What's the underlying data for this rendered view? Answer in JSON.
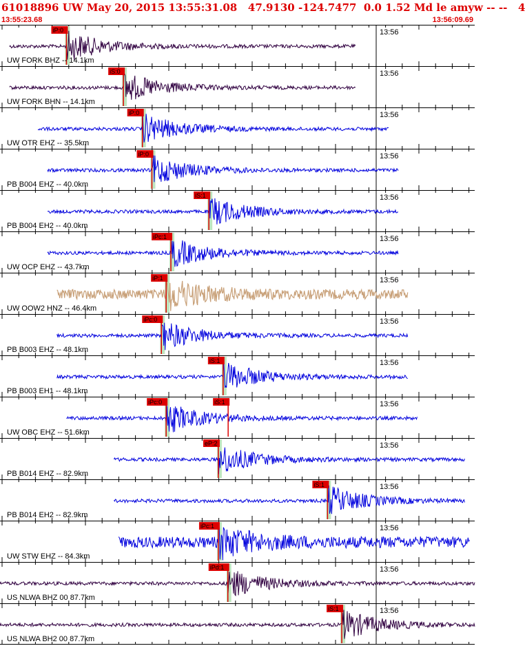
{
  "header": {
    "title": "61018896 UW May 20, 2015 13:55:31.08   47.9130 -124.7477  0.0 1.52 Md le amyw -- --   4",
    "start_time": "13:55:23.68",
    "end_time": "13:56:09.69"
  },
  "colors": {
    "title": "#dd0000",
    "pick": "#dd0000",
    "window": "#bfe6bf",
    "blue_trace": "#0000dd",
    "dark_trace": "#300040",
    "tan_trace": "#c8a078"
  },
  "chart_data": {
    "type": "line",
    "time_axis": {
      "start": "13:55:23.68",
      "end": "13:56:09.69",
      "minute_label": "13:56"
    },
    "traces": [
      {
        "label": "UW FORK BHZ -- 14.1km",
        "color": "dark",
        "picks": [
          {
            "text": "iP:0"
          }
        ],
        "start": 2,
        "end": 75,
        "onset": 14
      },
      {
        "label": "UW FORK BHN -- 14.1km",
        "color": "dark",
        "picks": [
          {
            "text": "iS:0"
          }
        ],
        "start": 2,
        "end": 75,
        "onset": 26
      },
      {
        "label": "UW OTR EHZ -- 35.5km",
        "color": "blue",
        "picks": [
          {
            "text": "iP:0"
          }
        ],
        "start": 8,
        "end": 82,
        "onset": 30
      },
      {
        "label": "PB B004 EHZ -- 40.0km",
        "color": "blue",
        "picks": [
          {
            "text": "iP:0"
          }
        ],
        "start": 10,
        "end": 84,
        "onset": 32
      },
      {
        "label": "PB B004 EH2 -- 40.0km",
        "color": "blue",
        "picks": [
          {
            "text": "iS:1"
          }
        ],
        "start": 10,
        "end": 84,
        "onset": 44
      },
      {
        "label": "UW OCP EHZ -- 43.7km",
        "color": "blue",
        "picks": [
          {
            "text": "iPc:1"
          }
        ],
        "start": 10,
        "end": 84,
        "onset": 36
      },
      {
        "label": "UW OOW2 HNZ -- 46.4km",
        "color": "tan",
        "picks": [
          {
            "text": "iP:1"
          }
        ],
        "start": 12,
        "end": 86,
        "onset": 35
      },
      {
        "label": "PB B003 EHZ -- 48.1km",
        "color": "blue",
        "picks": [
          {
            "text": "iPc:0"
          }
        ],
        "start": 12,
        "end": 86,
        "onset": 34
      },
      {
        "label": "PB B003 EH1 -- 48.1km",
        "color": "blue",
        "picks": [
          {
            "text": "iS:1"
          }
        ],
        "start": 12,
        "end": 86,
        "onset": 47
      },
      {
        "label": "UW OBC EHZ -- 51.6km",
        "color": "blue",
        "picks": [
          {
            "text": "iPc:0"
          },
          {
            "text": "iS:1"
          }
        ],
        "start": 14,
        "end": 88,
        "onset": 35
      },
      {
        "label": "PB B014 EHZ -- 82.9km",
        "color": "blue",
        "picks": [
          {
            "text": "eP:2"
          }
        ],
        "start": 24,
        "end": 98,
        "onset": 46
      },
      {
        "label": "PB B014 EH2 -- 82.9km",
        "color": "blue",
        "picks": [
          {
            "text": "iS:1"
          }
        ],
        "start": 24,
        "end": 98,
        "onset": 69
      },
      {
        "label": "UW STW EHZ -- 84.3km",
        "color": "blue",
        "picks": [
          {
            "text": "iPc:1"
          }
        ],
        "start": 25,
        "end": 99,
        "onset": 46
      },
      {
        "label": "US NLWA BHZ 00 87.7km",
        "color": "dark",
        "picks": [
          {
            "text": "iPd:1"
          }
        ],
        "start": 0,
        "end": 100,
        "onset": 48
      },
      {
        "label": "US NLWA BH2 00 87.7km",
        "color": "dark",
        "picks": [
          {
            "text": "iS:1"
          }
        ],
        "start": 0,
        "end": 100,
        "onset": 72
      }
    ]
  }
}
